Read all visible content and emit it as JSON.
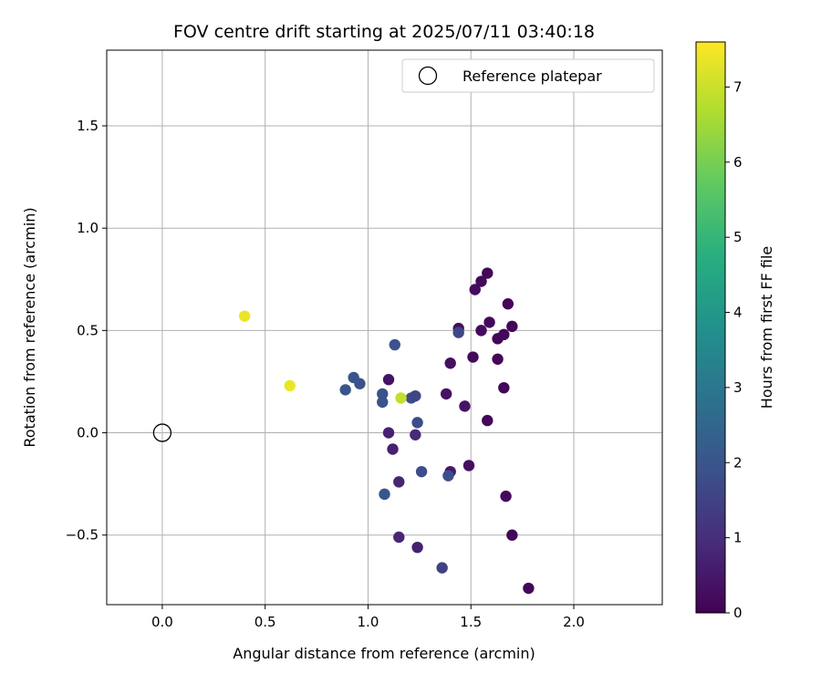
{
  "chart_data": {
    "type": "scatter",
    "title": "FOV centre drift starting at 2025/07/11 03:40:18",
    "xlabel": "Angular distance from reference (arcmin)",
    "ylabel": "Rotation from reference (arcmin)",
    "xlim": [
      -0.27,
      2.43
    ],
    "ylim": [
      -0.84,
      1.87
    ],
    "x_ticks": [
      0.0,
      0.5,
      1.0,
      1.5,
      2.0
    ],
    "x_tick_labels": [
      "0.0",
      "0.5",
      "1.0",
      "1.5",
      "2.0"
    ],
    "y_ticks": [
      -0.5,
      0.0,
      0.5,
      1.0,
      1.5
    ],
    "y_tick_labels": [
      "−0.5",
      "0.0",
      "0.5",
      "1.0",
      "1.5"
    ],
    "grid": true,
    "legend": {
      "placement": "top-right",
      "entries": [
        {
          "label": "Reference platepar",
          "marker": "open-circle",
          "color": "#000000"
        }
      ]
    },
    "reference": {
      "x": 0.0,
      "y": 0.0
    },
    "colorbar": {
      "label": "Hours from first FF file",
      "colormap": "viridis",
      "range": [
        0,
        7.6
      ],
      "ticks": [
        0,
        1,
        2,
        3,
        4,
        5,
        6,
        7
      ],
      "tick_labels": [
        "0",
        "1",
        "2",
        "3",
        "4",
        "5",
        "6",
        "7"
      ]
    },
    "points": [
      {
        "x": 1.58,
        "y": 0.78,
        "h": 0.1
      },
      {
        "x": 1.55,
        "y": 0.74,
        "h": 0.15
      },
      {
        "x": 1.52,
        "y": 0.7,
        "h": 0.2
      },
      {
        "x": 1.68,
        "y": 0.63,
        "h": 0.1
      },
      {
        "x": 1.59,
        "y": 0.54,
        "h": 0.15
      },
      {
        "x": 1.7,
        "y": 0.52,
        "h": 0.1
      },
      {
        "x": 1.44,
        "y": 0.51,
        "h": 0.3
      },
      {
        "x": 1.55,
        "y": 0.5,
        "h": 0.2
      },
      {
        "x": 1.66,
        "y": 0.48,
        "h": 0.15
      },
      {
        "x": 1.63,
        "y": 0.46,
        "h": 0.1
      },
      {
        "x": 1.51,
        "y": 0.37,
        "h": 0.2
      },
      {
        "x": 1.63,
        "y": 0.36,
        "h": 0.1
      },
      {
        "x": 1.4,
        "y": 0.34,
        "h": 0.3
      },
      {
        "x": 1.1,
        "y": 0.26,
        "h": 0.4
      },
      {
        "x": 1.66,
        "y": 0.22,
        "h": 0.1
      },
      {
        "x": 1.38,
        "y": 0.19,
        "h": 0.4
      },
      {
        "x": 1.47,
        "y": 0.13,
        "h": 0.4
      },
      {
        "x": 1.58,
        "y": 0.06,
        "h": 0.15
      },
      {
        "x": 1.1,
        "y": 0.0,
        "h": 0.7
      },
      {
        "x": 1.23,
        "y": -0.01,
        "h": 0.9
      },
      {
        "x": 1.12,
        "y": -0.08,
        "h": 0.7
      },
      {
        "x": 1.49,
        "y": -0.16,
        "h": 0.3
      },
      {
        "x": 1.4,
        "y": -0.19,
        "h": 0.5
      },
      {
        "x": 1.15,
        "y": -0.24,
        "h": 0.8
      },
      {
        "x": 1.67,
        "y": -0.31,
        "h": 0.2
      },
      {
        "x": 1.7,
        "y": -0.5,
        "h": 0.1
      },
      {
        "x": 1.15,
        "y": -0.51,
        "h": 0.8
      },
      {
        "x": 1.24,
        "y": -0.56,
        "h": 0.7
      },
      {
        "x": 1.78,
        "y": -0.76,
        "h": 0.1
      },
      {
        "x": 1.13,
        "y": 0.43,
        "h": 1.9
      },
      {
        "x": 1.44,
        "y": 0.49,
        "h": 1.6
      },
      {
        "x": 0.93,
        "y": 0.27,
        "h": 2.0
      },
      {
        "x": 0.96,
        "y": 0.24,
        "h": 1.9
      },
      {
        "x": 0.89,
        "y": 0.21,
        "h": 2.0
      },
      {
        "x": 1.07,
        "y": 0.19,
        "h": 1.9
      },
      {
        "x": 1.07,
        "y": 0.15,
        "h": 1.9
      },
      {
        "x": 1.21,
        "y": 0.17,
        "h": 1.8
      },
      {
        "x": 1.23,
        "y": 0.18,
        "h": 1.6
      },
      {
        "x": 1.24,
        "y": 0.05,
        "h": 1.8
      },
      {
        "x": 1.26,
        "y": -0.19,
        "h": 1.8
      },
      {
        "x": 1.39,
        "y": -0.21,
        "h": 1.8
      },
      {
        "x": 1.08,
        "y": -0.3,
        "h": 2.0
      },
      {
        "x": 1.36,
        "y": -0.66,
        "h": 1.5
      },
      {
        "x": 0.4,
        "y": 0.57,
        "h": 7.4
      },
      {
        "x": 0.62,
        "y": 0.23,
        "h": 7.4
      },
      {
        "x": 1.16,
        "y": 0.17,
        "h": 6.9
      }
    ]
  }
}
